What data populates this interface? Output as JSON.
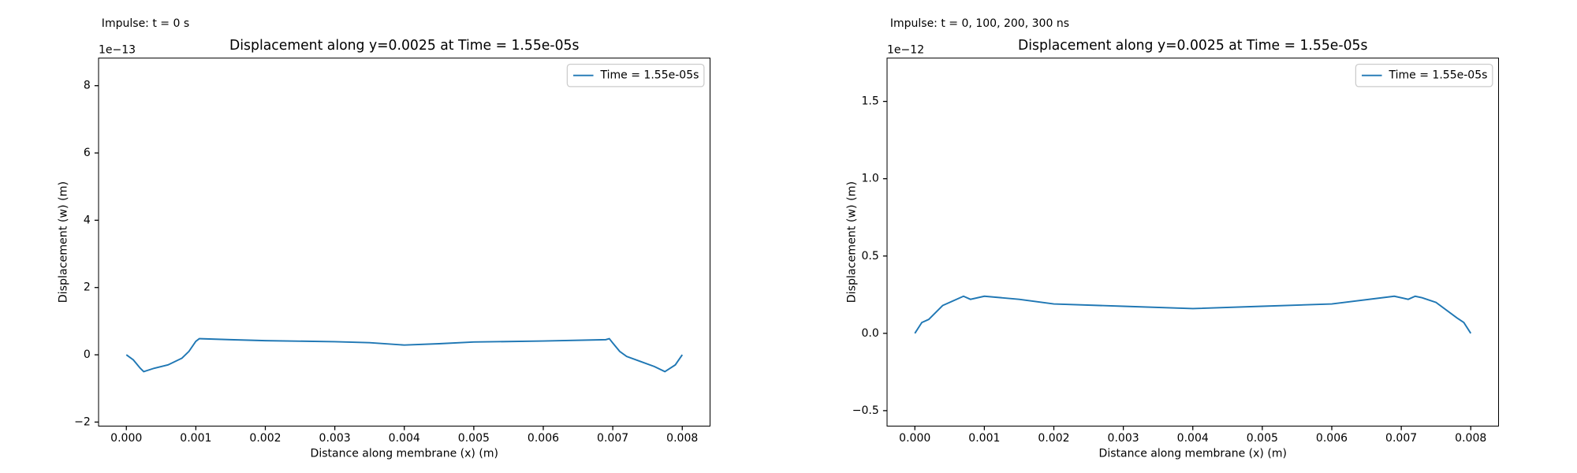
{
  "chart_data": [
    {
      "type": "line",
      "annotation": "Impulse: t = 0 s",
      "title": "Displacement along y=0.0025 at Time = 1.55e-05s",
      "x_label": "Distance along membrane (x) (m)",
      "y_label": "Displacement (w) (m)",
      "y_offset_label": "1e−13",
      "xlim": [
        -0.0004,
        0.0084
      ],
      "ylim": [
        -2.12,
        8.82
      ],
      "xticks": [
        {
          "value": 0,
          "label": "0.000"
        },
        {
          "value": 0.001,
          "label": "0.001"
        },
        {
          "value": 0.002,
          "label": "0.002"
        },
        {
          "value": 0.003,
          "label": "0.003"
        },
        {
          "value": 0.004,
          "label": "0.004"
        },
        {
          "value": 0.005,
          "label": "0.005"
        },
        {
          "value": 0.006,
          "label": "0.006"
        },
        {
          "value": 0.007,
          "label": "0.007"
        },
        {
          "value": 0.008,
          "label": "0.008"
        }
      ],
      "yticks": [
        {
          "value": -2,
          "label": "−2"
        },
        0,
        2,
        4,
        6,
        8
      ],
      "legend": "upper right",
      "x": [
        0,
        0.0001,
        0.0002,
        0.00025,
        0.0004,
        0.0006,
        0.0008,
        0.0009,
        0.001,
        0.00105,
        0.0015,
        0.002,
        0.003,
        0.0035,
        0.004,
        0.0045,
        0.005,
        0.006,
        0.0069,
        0.00695,
        0.007,
        0.0071,
        0.0072,
        0.0074,
        0.0076,
        0.00775,
        0.0079,
        0.008
      ],
      "series": [
        {
          "name": "Time = 1.55e-05s",
          "color": "#1f77b4",
          "values": [
            0,
            -0.15,
            -0.4,
            -0.5,
            -0.4,
            -0.3,
            -0.1,
            0.1,
            0.4,
            0.48,
            0.45,
            0.42,
            0.39,
            0.36,
            0.29,
            0.33,
            0.38,
            0.41,
            0.45,
            0.48,
            0.35,
            0.1,
            -0.05,
            -0.2,
            -0.35,
            -0.5,
            -0.3,
            0
          ]
        }
      ]
    },
    {
      "type": "line",
      "annotation": "Impulse: t = 0, 100, 200, 300 ns",
      "title": "Displacement along y=0.0025 at Time = 1.55e-05s",
      "x_label": "Distance along membrane (x) (m)",
      "y_label": "Displacement (w) (m)",
      "y_offset_label": "1e−12",
      "xlim": [
        -0.0004,
        0.0084
      ],
      "ylim": [
        -0.6,
        1.78
      ],
      "xticks": [
        {
          "value": 0,
          "label": "0.000"
        },
        {
          "value": 0.001,
          "label": "0.001"
        },
        {
          "value": 0.002,
          "label": "0.002"
        },
        {
          "value": 0.003,
          "label": "0.003"
        },
        {
          "value": 0.004,
          "label": "0.004"
        },
        {
          "value": 0.005,
          "label": "0.005"
        },
        {
          "value": 0.006,
          "label": "0.006"
        },
        {
          "value": 0.007,
          "label": "0.007"
        },
        {
          "value": 0.008,
          "label": "0.008"
        }
      ],
      "yticks": [
        {
          "value": -0.5,
          "label": "−0.5"
        },
        {
          "value": 0,
          "label": "0.0"
        },
        0.5,
        {
          "value": 1,
          "label": "1.0"
        },
        1.5
      ],
      "legend": "upper right",
      "x": [
        0,
        0.0001,
        0.0002,
        0.0004,
        0.0005,
        0.0007,
        0.0008,
        0.001,
        0.0015,
        0.002,
        0.003,
        0.004,
        0.005,
        0.006,
        0.0069,
        0.0071,
        0.0072,
        0.0073,
        0.0075,
        0.0078,
        0.0079,
        0.008
      ],
      "series": [
        {
          "name": "Time = 1.55e-05s",
          "color": "#1f77b4",
          "values": [
            0,
            0.07,
            0.09,
            0.18,
            0.2,
            0.24,
            0.22,
            0.24,
            0.22,
            0.19,
            0.175,
            0.16,
            0.175,
            0.19,
            0.24,
            0.22,
            0.24,
            0.23,
            0.2,
            0.1,
            0.07,
            0
          ]
        }
      ]
    }
  ]
}
